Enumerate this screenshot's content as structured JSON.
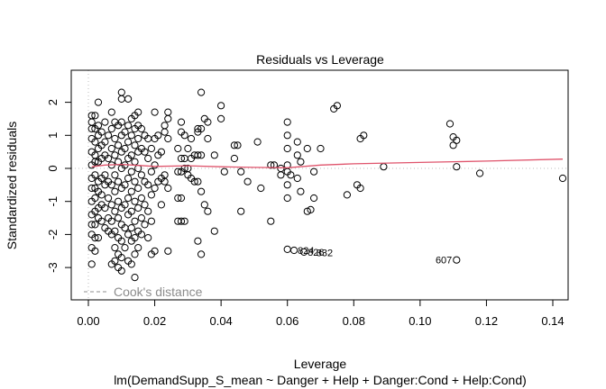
{
  "chart_data": {
    "type": "scatter",
    "title": "Residuals vs Leverage",
    "xlabel": "Leverage",
    "ylabel": "Standardized residuals",
    "subtitle": "lm(DemandSupp_S_mean ~ Danger + Help + Danger:Cond + Help:Cond)",
    "xlim": [
      -0.005,
      0.146
    ],
    "ylim": [
      -4.0,
      3.0
    ],
    "x_ticks": [
      0.0,
      0.02,
      0.04,
      0.06,
      0.08,
      0.1,
      0.12,
      0.14
    ],
    "x_tick_labels": [
      "0.00",
      "0.02",
      "0.04",
      "0.06",
      "0.08",
      "0.10",
      "0.12",
      "0.14"
    ],
    "y_ticks": [
      -3,
      -2,
      -1,
      0,
      1,
      2
    ],
    "y_tick_labels": [
      "-3",
      "-2",
      "-1",
      "0",
      "1",
      "2"
    ],
    "grid": false,
    "reference_line": {
      "y": 0,
      "style": "dotted",
      "color": "#bebebe"
    },
    "vertical_reference_line": {
      "x": 0,
      "style": "dotted",
      "color": "#bebebe"
    },
    "legend": {
      "label": "Cook's distance",
      "placement": "bottom-left",
      "style": "dashed",
      "color": "#8c8c8c"
    },
    "smoother": {
      "color": "#df536b",
      "x": [
        0.001,
        0.005,
        0.01,
        0.015,
        0.02,
        0.03,
        0.04,
        0.05,
        0.06,
        0.07,
        0.08,
        0.1,
        0.12,
        0.143
      ],
      "y": [
        0.05,
        0.1,
        0.12,
        0.09,
        0.06,
        0.08,
        0.05,
        0.03,
        0.02,
        0.1,
        0.14,
        0.18,
        0.22,
        0.28
      ]
    },
    "points_note": "Transcribed from visible marker positions; approximate. Leverage >= 0.02 is read marker by marker. The dense column below leverage 0.02 holds hundreds of overlapping markers and is only a representative sample, not the full set of observations.",
    "points": [
      [
        0.001,
        1.6
      ],
      [
        0.001,
        1.4
      ],
      [
        0.001,
        1.2
      ],
      [
        0.001,
        0.9
      ],
      [
        0.001,
        0.5
      ],
      [
        0.001,
        0.1
      ],
      [
        0.001,
        -0.3
      ],
      [
        0.001,
        -0.6
      ],
      [
        0.001,
        -1.0
      ],
      [
        0.001,
        -1.4
      ],
      [
        0.001,
        -1.7
      ],
      [
        0.001,
        -2.0
      ],
      [
        0.001,
        -2.4
      ],
      [
        0.001,
        -2.9
      ],
      [
        0.002,
        1.6
      ],
      [
        0.002,
        1.2
      ],
      [
        0.002,
        0.8
      ],
      [
        0.002,
        0.4
      ],
      [
        0.002,
        0.2
      ],
      [
        0.002,
        -0.2
      ],
      [
        0.002,
        -0.6
      ],
      [
        0.002,
        -0.9
      ],
      [
        0.002,
        -1.3
      ],
      [
        0.002,
        -1.7
      ],
      [
        0.002,
        -2.1
      ],
      [
        0.002,
        -2.5
      ],
      [
        0.003,
        2.0
      ],
      [
        0.003,
        1.3
      ],
      [
        0.003,
        1.0
      ],
      [
        0.003,
        0.6
      ],
      [
        0.003,
        0.2
      ],
      [
        0.003,
        -0.4
      ],
      [
        0.003,
        -0.7
      ],
      [
        0.003,
        -1.2
      ],
      [
        0.003,
        -1.5
      ],
      [
        0.003,
        -2.1
      ],
      [
        0.004,
        1.1
      ],
      [
        0.004,
        0.7
      ],
      [
        0.004,
        0.3
      ],
      [
        0.004,
        -0.3
      ],
      [
        0.004,
        -0.8
      ],
      [
        0.004,
        -1.1
      ],
      [
        0.004,
        -1.6
      ],
      [
        0.005,
        1.4
      ],
      [
        0.005,
        0.8
      ],
      [
        0.005,
        0.4
      ],
      [
        0.005,
        -0.2
      ],
      [
        0.005,
        -0.5
      ],
      [
        0.005,
        -1.2
      ],
      [
        0.005,
        -1.8
      ],
      [
        0.006,
        1.0
      ],
      [
        0.006,
        0.3
      ],
      [
        0.006,
        -0.4
      ],
      [
        0.006,
        -0.9
      ],
      [
        0.006,
        -1.5
      ],
      [
        0.006,
        -1.9
      ],
      [
        0.007,
        1.7
      ],
      [
        0.007,
        1.2
      ],
      [
        0.007,
        0.6
      ],
      [
        0.007,
        0.1
      ],
      [
        0.007,
        -0.5
      ],
      [
        0.007,
        -1.1
      ],
      [
        0.007,
        -1.6
      ],
      [
        0.007,
        -2.0
      ],
      [
        0.007,
        -2.9
      ],
      [
        0.008,
        1.4
      ],
      [
        0.008,
        0.9
      ],
      [
        0.008,
        0.4
      ],
      [
        0.008,
        -0.2
      ],
      [
        0.008,
        -0.7
      ],
      [
        0.008,
        -1.3
      ],
      [
        0.008,
        -1.9
      ],
      [
        0.008,
        -2.4
      ],
      [
        0.008,
        -2.8
      ],
      [
        0.009,
        1.3
      ],
      [
        0.009,
        0.7
      ],
      [
        0.009,
        0.2
      ],
      [
        0.009,
        -0.4
      ],
      [
        0.009,
        -1.0
      ],
      [
        0.009,
        -1.5
      ],
      [
        0.009,
        -2.1
      ],
      [
        0.009,
        -2.6
      ],
      [
        0.009,
        -3.0
      ],
      [
        0.01,
        2.3
      ],
      [
        0.01,
        2.1
      ],
      [
        0.01,
        1.4
      ],
      [
        0.01,
        1.0
      ],
      [
        0.01,
        0.5
      ],
      [
        0.01,
        0.0
      ],
      [
        0.01,
        -0.6
      ],
      [
        0.01,
        -1.2
      ],
      [
        0.01,
        -1.7
      ],
      [
        0.01,
        -2.2
      ],
      [
        0.01,
        -2.7
      ],
      [
        0.01,
        -3.1
      ],
      [
        0.011,
        1.1
      ],
      [
        0.011,
        0.6
      ],
      [
        0.011,
        0.1
      ],
      [
        0.011,
        -0.5
      ],
      [
        0.011,
        -1.1
      ],
      [
        0.011,
        -1.8
      ],
      [
        0.011,
        -2.4
      ],
      [
        0.012,
        2.1
      ],
      [
        0.012,
        1.3
      ],
      [
        0.012,
        0.8
      ],
      [
        0.012,
        0.3
      ],
      [
        0.012,
        -0.3
      ],
      [
        0.012,
        -0.9
      ],
      [
        0.012,
        -1.4
      ],
      [
        0.012,
        -2.0
      ],
      [
        0.012,
        -2.8
      ],
      [
        0.013,
        1.5
      ],
      [
        0.013,
        1.0
      ],
      [
        0.013,
        0.4
      ],
      [
        0.013,
        -0.1
      ],
      [
        0.013,
        -0.7
      ],
      [
        0.013,
        -1.3
      ],
      [
        0.013,
        -1.8
      ],
      [
        0.013,
        -2.2
      ],
      [
        0.013,
        -2.9
      ],
      [
        0.014,
        1.6
      ],
      [
        0.014,
        1.2
      ],
      [
        0.014,
        0.7
      ],
      [
        0.014,
        0.2
      ],
      [
        0.014,
        -0.4
      ],
      [
        0.014,
        -1.0
      ],
      [
        0.014,
        -1.6
      ],
      [
        0.014,
        -2.1
      ],
      [
        0.014,
        -2.6
      ],
      [
        0.014,
        -3.3
      ],
      [
        0.015,
        1.7
      ],
      [
        0.015,
        1.3
      ],
      [
        0.015,
        0.9
      ],
      [
        0.015,
        0.5
      ],
      [
        0.015,
        0.0
      ],
      [
        0.015,
        -0.6
      ],
      [
        0.015,
        -1.2
      ],
      [
        0.015,
        -1.9
      ],
      [
        0.015,
        -2.4
      ],
      [
        0.016,
        1.2
      ],
      [
        0.016,
        0.6
      ],
      [
        0.016,
        -0.2
      ],
      [
        0.016,
        -0.9
      ],
      [
        0.016,
        -1.5
      ],
      [
        0.016,
        -2.0
      ],
      [
        0.017,
        1.0
      ],
      [
        0.017,
        0.5
      ],
      [
        0.017,
        -0.4
      ],
      [
        0.017,
        -1.1
      ],
      [
        0.017,
        -1.7
      ],
      [
        0.018,
        0.9
      ],
      [
        0.018,
        0.3
      ],
      [
        0.018,
        -0.5
      ],
      [
        0.018,
        -1.3
      ],
      [
        0.018,
        -2.1
      ],
      [
        0.019,
        0.6
      ],
      [
        0.019,
        -0.1
      ],
      [
        0.019,
        -0.8
      ],
      [
        0.019,
        -1.6
      ],
      [
        0.019,
        -2.6
      ],
      [
        0.02,
        1.7
      ],
      [
        0.02,
        0.9
      ],
      [
        0.02,
        0.1
      ],
      [
        0.02,
        -0.6
      ],
      [
        0.02,
        -2.5
      ],
      [
        0.021,
        1.0
      ],
      [
        0.021,
        0.4
      ],
      [
        0.021,
        -0.4
      ],
      [
        0.022,
        0.5
      ],
      [
        0.022,
        -0.3
      ],
      [
        0.022,
        -1.1
      ],
      [
        0.023,
        1.3
      ],
      [
        0.023,
        1.1
      ],
      [
        0.023,
        -0.2
      ],
      [
        0.023,
        -0.4
      ],
      [
        0.024,
        1.7
      ],
      [
        0.024,
        1.5
      ],
      [
        0.024,
        0.9
      ],
      [
        0.024,
        -0.6
      ],
      [
        0.024,
        -2.5
      ],
      [
        0.027,
        0.6
      ],
      [
        0.027,
        -0.1
      ],
      [
        0.027,
        -0.9
      ],
      [
        0.027,
        -1.6
      ],
      [
        0.028,
        1.4
      ],
      [
        0.028,
        1.1
      ],
      [
        0.028,
        0.3
      ],
      [
        0.028,
        -0.1
      ],
      [
        0.028,
        -0.9
      ],
      [
        0.028,
        -1.6
      ],
      [
        0.029,
        1.0
      ],
      [
        0.029,
        0.3
      ],
      [
        0.029,
        0.0
      ],
      [
        0.029,
        -1.6
      ],
      [
        0.03,
        0.6
      ],
      [
        0.03,
        0.0
      ],
      [
        0.03,
        -0.2
      ],
      [
        0.031,
        0.9
      ],
      [
        0.031,
        0.3
      ],
      [
        0.031,
        -0.3
      ],
      [
        0.032,
        0.4
      ],
      [
        0.032,
        -0.4
      ],
      [
        0.033,
        1.2
      ],
      [
        0.033,
        1.1
      ],
      [
        0.033,
        0.4
      ],
      [
        0.033,
        -0.4
      ],
      [
        0.033,
        -2.2
      ],
      [
        0.034,
        2.3
      ],
      [
        0.034,
        1.2
      ],
      [
        0.034,
        0.4
      ],
      [
        0.034,
        -0.7
      ],
      [
        0.034,
        -2.6
      ],
      [
        0.035,
        1.5
      ],
      [
        0.035,
        -1.1
      ],
      [
        0.036,
        1.4
      ],
      [
        0.036,
        0.9
      ],
      [
        0.036,
        -1.3
      ],
      [
        0.038,
        0.4
      ],
      [
        0.038,
        -1.9
      ],
      [
        0.04,
        1.9
      ],
      [
        0.04,
        1.5
      ],
      [
        0.041,
        -0.1
      ],
      [
        0.044,
        0.7
      ],
      [
        0.044,
        0.3
      ],
      [
        0.045,
        0.7
      ],
      [
        0.046,
        -0.1
      ],
      [
        0.046,
        -1.3
      ],
      [
        0.048,
        -0.4
      ],
      [
        0.051,
        0.8
      ],
      [
        0.052,
        -0.6
      ],
      [
        0.055,
        0.1
      ],
      [
        0.055,
        -1.6
      ],
      [
        0.056,
        0.1
      ],
      [
        0.058,
        0.0
      ],
      [
        0.058,
        -0.2
      ],
      [
        0.06,
        1.4
      ],
      [
        0.06,
        1.0
      ],
      [
        0.06,
        0.6
      ],
      [
        0.06,
        0.1
      ],
      [
        0.06,
        -0.1
      ],
      [
        0.06,
        -0.5
      ],
      [
        0.06,
        -0.9
      ],
      [
        0.06,
        -2.45
      ],
      [
        0.061,
        -0.2
      ],
      [
        0.063,
        0.8
      ],
      [
        0.063,
        0.4
      ],
      [
        0.063,
        -0.3
      ],
      [
        0.064,
        0.2
      ],
      [
        0.064,
        -0.7
      ],
      [
        0.066,
        0.6
      ],
      [
        0.066,
        -1.3
      ],
      [
        0.067,
        -1.25
      ],
      [
        0.068,
        -0.1
      ],
      [
        0.068,
        -0.9
      ],
      [
        0.07,
        0.6
      ],
      [
        0.074,
        1.8
      ],
      [
        0.075,
        1.9
      ],
      [
        0.078,
        -0.8
      ],
      [
        0.081,
        -0.5
      ],
      [
        0.082,
        0.9
      ],
      [
        0.082,
        -0.6
      ],
      [
        0.083,
        1.0
      ],
      [
        0.089,
        0.05
      ],
      [
        0.109,
        1.35
      ],
      [
        0.11,
        0.95
      ],
      [
        0.11,
        0.7
      ],
      [
        0.111,
        0.85
      ],
      [
        0.111,
        0.05
      ],
      [
        0.118,
        -0.15
      ],
      [
        0.143,
        -0.3
      ]
    ],
    "labeled_points": [
      {
        "id": "824",
        "x": 0.062,
        "y": -2.48
      },
      {
        "id": "826",
        "x": 0.065,
        "y": -2.53
      },
      {
        "id": "607",
        "x": 0.111,
        "y": -2.77
      }
    ],
    "label_832": {
      "id": "832",
      "x": 0.066,
      "y": -2.55
    }
  }
}
